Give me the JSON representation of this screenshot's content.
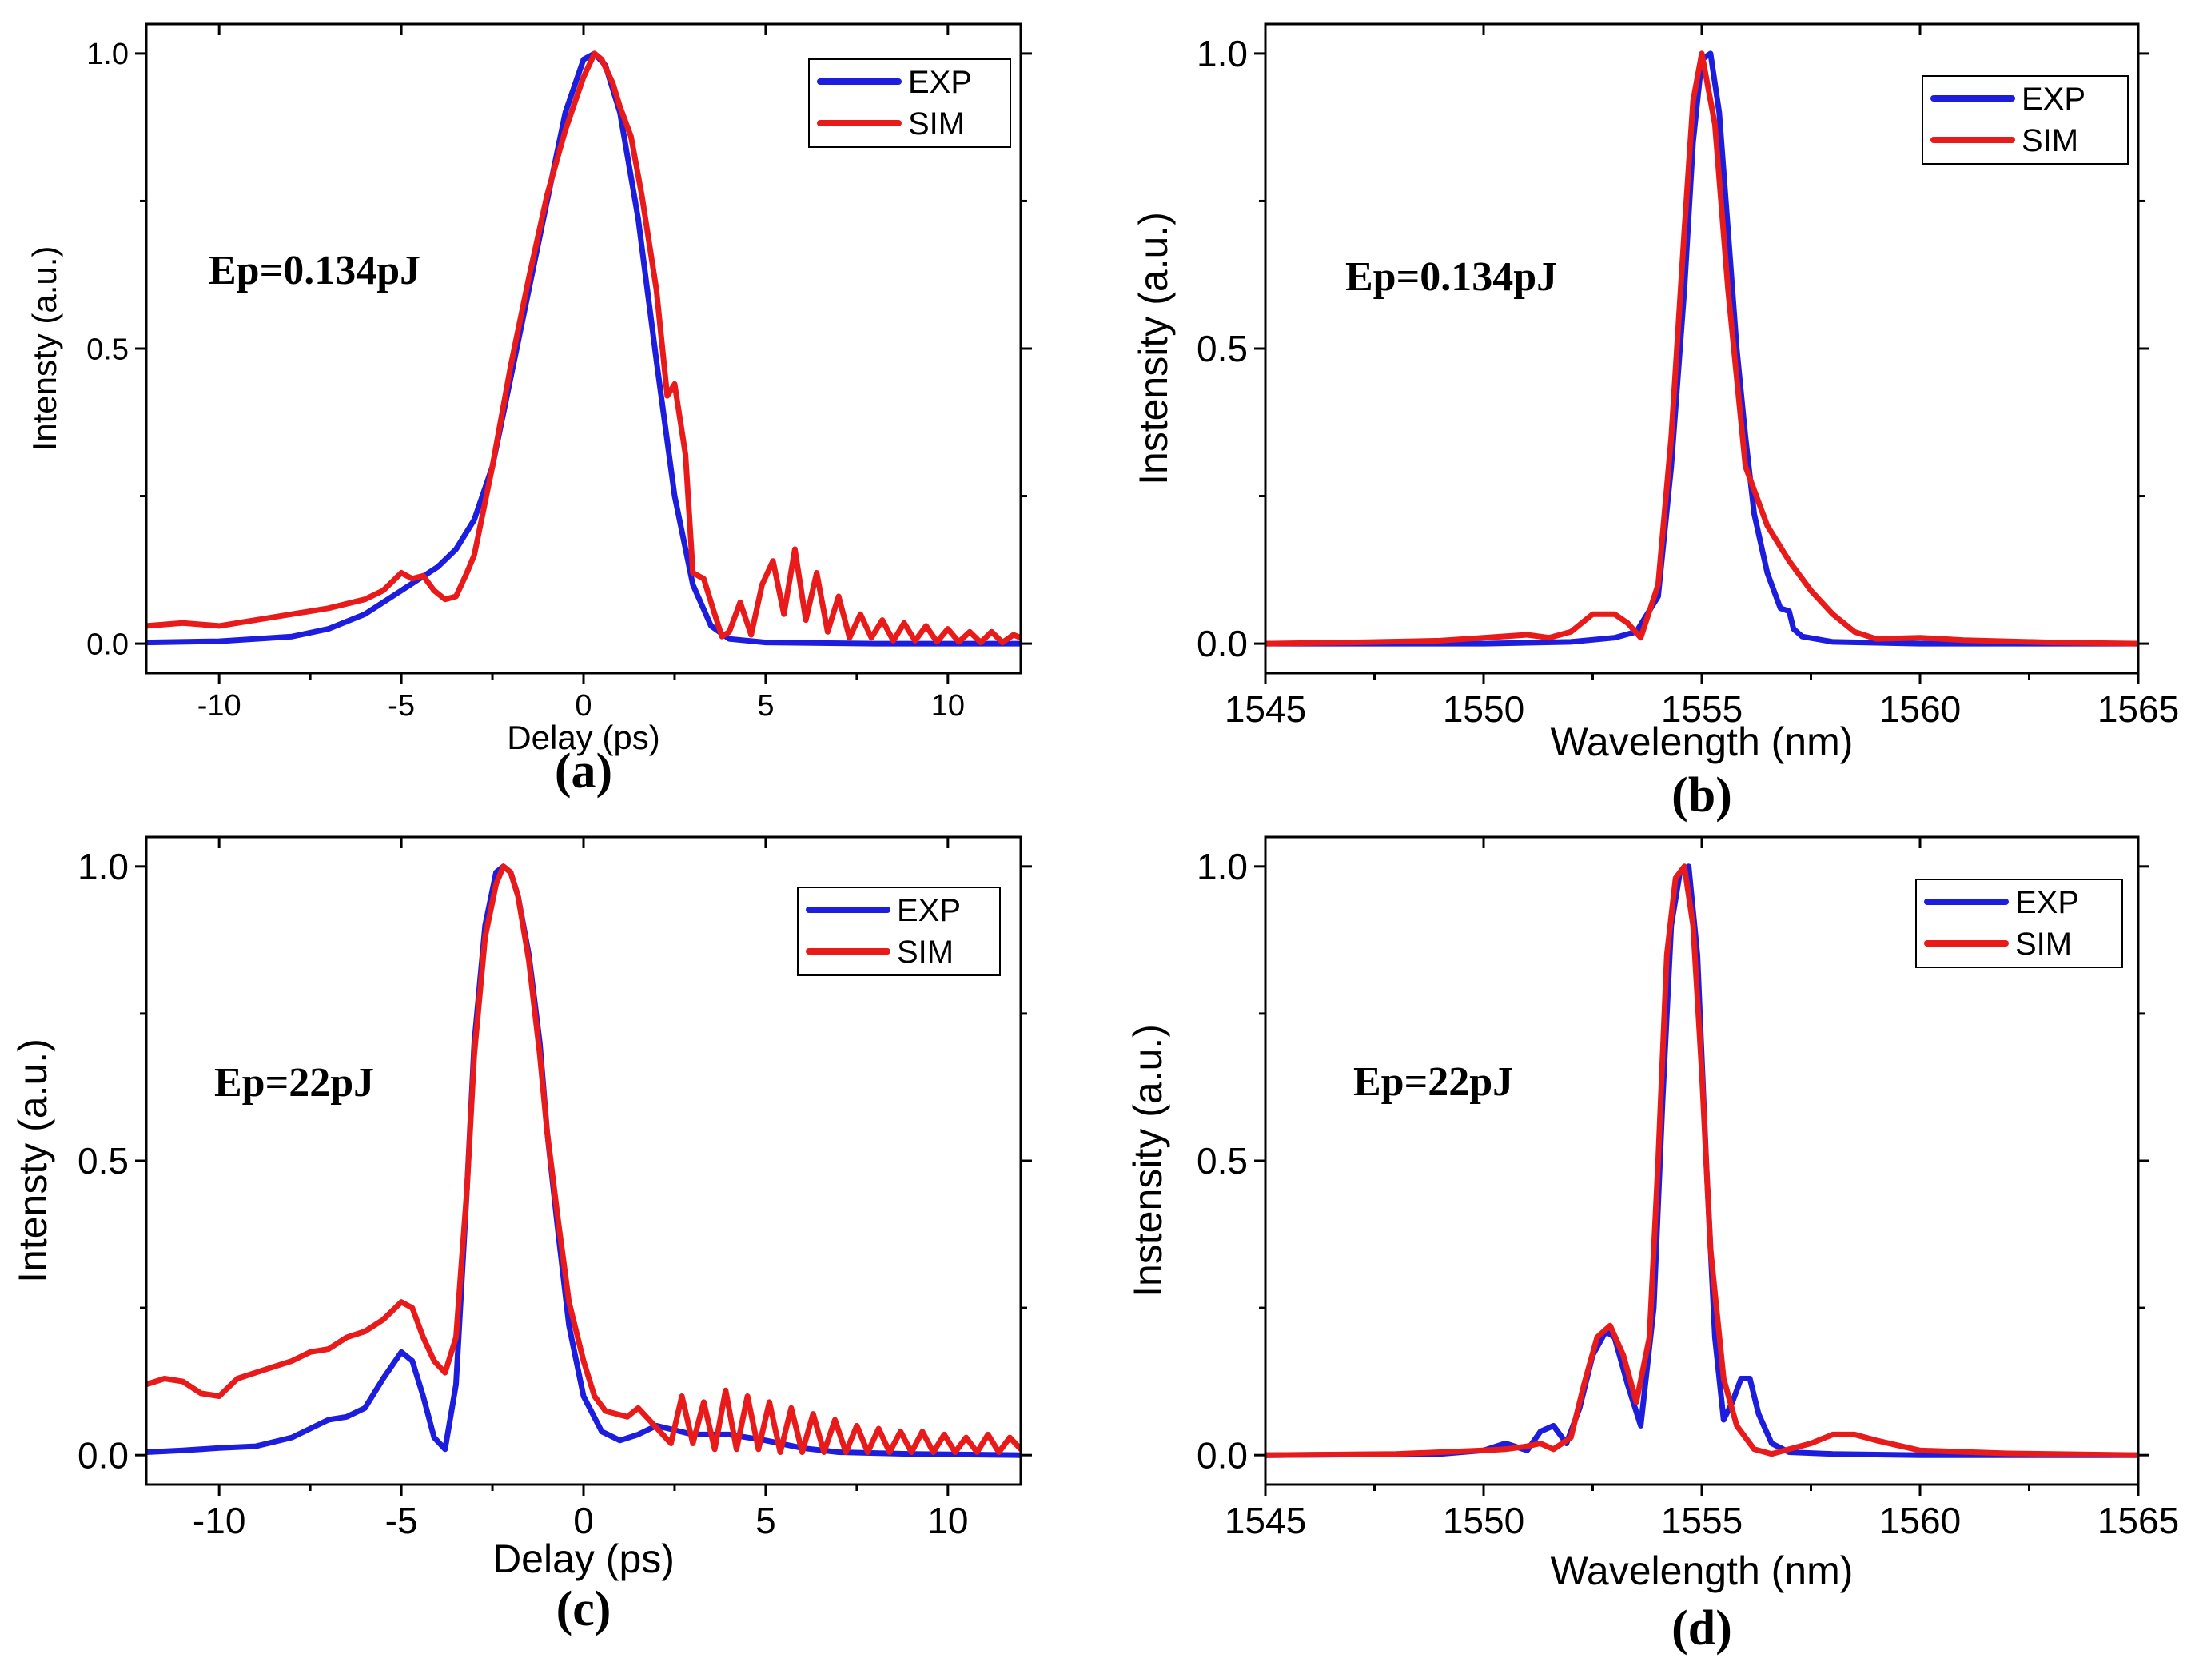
{
  "figure": {
    "background": "#ffffff"
  },
  "colors": {
    "exp": "#1d1dde",
    "sim": "#e81a1a",
    "axis": "#000000"
  },
  "chart_data": [
    {
      "id": "a",
      "type": "line",
      "panel_label": "(a)",
      "annotation": "Ep=0.134pJ",
      "xlabel": "Delay (ps)",
      "ylabel": "Intensty (a.u.)",
      "xlim": [
        -12,
        12
      ],
      "ylim": [
        -0.05,
        1.05
      ],
      "xticks": [
        -10,
        -5,
        0,
        5,
        10
      ],
      "xtick_labels": [
        "-10",
        "-5",
        "0",
        "5",
        "10"
      ],
      "yticks": [
        0,
        0.5,
        1
      ],
      "ytick_labels": [
        "0.0",
        "0.5",
        "1.0"
      ],
      "legend": {
        "position": "top-right",
        "entries": [
          "EXP",
          "SIM"
        ]
      },
      "series": [
        {
          "name": "EXP",
          "x": [
            -12,
            -10,
            -8,
            -7,
            -6,
            -5,
            -4,
            -3.5,
            -3,
            -2.5,
            -2,
            -1.5,
            -1,
            -0.5,
            0,
            0.3,
            0.6,
            1,
            1.5,
            2,
            2.5,
            3,
            3.5,
            4,
            5,
            8,
            12
          ],
          "y": [
            0.002,
            0.004,
            0.012,
            0.025,
            0.05,
            0.09,
            0.13,
            0.16,
            0.21,
            0.3,
            0.45,
            0.6,
            0.75,
            0.9,
            0.99,
            1.0,
            0.98,
            0.9,
            0.72,
            0.48,
            0.25,
            0.1,
            0.03,
            0.008,
            0.002,
            0.0,
            0.0
          ]
        },
        {
          "name": "SIM",
          "x": [
            -12,
            -11,
            -10,
            -9,
            -8,
            -7,
            -6,
            -5.5,
            -5,
            -4.7,
            -4.4,
            -4.1,
            -3.8,
            -3.5,
            -3.2,
            -3,
            -2.5,
            -2,
            -1.5,
            -1,
            -0.5,
            0,
            0.3,
            0.5,
            0.8,
            1,
            1.3,
            1.6,
            2,
            2.3,
            2.5,
            2.8,
            3,
            3.3,
            3.6,
            3.8,
            4,
            4.3,
            4.6,
            4.9,
            5.2,
            5.5,
            5.8,
            6.1,
            6.4,
            6.7,
            7,
            7.3,
            7.6,
            7.9,
            8.2,
            8.5,
            8.8,
            9.1,
            9.4,
            9.7,
            10,
            10.3,
            10.6,
            10.9,
            11.2,
            11.5,
            11.8,
            12
          ],
          "y": [
            0.03,
            0.035,
            0.03,
            0.04,
            0.05,
            0.06,
            0.075,
            0.09,
            0.12,
            0.11,
            0.115,
            0.09,
            0.075,
            0.08,
            0.12,
            0.15,
            0.3,
            0.47,
            0.62,
            0.76,
            0.87,
            0.96,
            1.0,
            0.99,
            0.95,
            0.91,
            0.86,
            0.76,
            0.6,
            0.42,
            0.44,
            0.32,
            0.12,
            0.11,
            0.05,
            0.012,
            0.02,
            0.07,
            0.015,
            0.1,
            0.14,
            0.05,
            0.16,
            0.04,
            0.12,
            0.02,
            0.08,
            0.01,
            0.05,
            0.01,
            0.04,
            0.005,
            0.035,
            0.005,
            0.03,
            0.003,
            0.025,
            0.003,
            0.02,
            0.002,
            0.02,
            0.002,
            0.015,
            0.01
          ]
        }
      ]
    },
    {
      "id": "b",
      "type": "line",
      "panel_label": "(b)",
      "annotation": "Ep=0.134pJ",
      "xlabel": "Wavelength (nm)",
      "ylabel": "Instensity (a.u.)",
      "xlim": [
        1545,
        1565
      ],
      "ylim": [
        -0.05,
        1.05
      ],
      "xticks": [
        1545,
        1550,
        1555,
        1560,
        1565
      ],
      "xtick_labels": [
        "1545",
        "1550",
        "1555",
        "1560",
        "1565"
      ],
      "yticks": [
        0,
        0.5,
        1
      ],
      "ytick_labels": [
        "0.0",
        "0.5",
        "1.0"
      ],
      "legend": {
        "position": "top-right",
        "entries": [
          "EXP",
          "SIM"
        ]
      },
      "series": [
        {
          "name": "EXP",
          "x": [
            1545,
            1550,
            1552,
            1553,
            1553.5,
            1554,
            1554.3,
            1554.6,
            1554.8,
            1555,
            1555.2,
            1555.4,
            1555.6,
            1555.8,
            1556,
            1556.2,
            1556.5,
            1556.8,
            1557,
            1557.1,
            1557.3,
            1558,
            1560,
            1565
          ],
          "y": [
            0.0,
            0.0,
            0.003,
            0.01,
            0.02,
            0.08,
            0.3,
            0.6,
            0.85,
            0.99,
            1.0,
            0.9,
            0.7,
            0.5,
            0.35,
            0.22,
            0.12,
            0.06,
            0.055,
            0.025,
            0.012,
            0.003,
            0.0,
            0.0
          ]
        },
        {
          "name": "SIM",
          "x": [
            1545,
            1547,
            1549,
            1550,
            1551,
            1551.5,
            1552,
            1552.5,
            1553,
            1553.3,
            1553.6,
            1554,
            1554.3,
            1554.6,
            1554.8,
            1555,
            1555.3,
            1555.6,
            1556,
            1556.5,
            1557,
            1557.5,
            1558,
            1558.5,
            1559,
            1560,
            1561,
            1563,
            1565
          ],
          "y": [
            0.0,
            0.002,
            0.005,
            0.01,
            0.015,
            0.01,
            0.02,
            0.05,
            0.05,
            0.035,
            0.01,
            0.1,
            0.35,
            0.7,
            0.92,
            1.0,
            0.88,
            0.6,
            0.3,
            0.2,
            0.14,
            0.09,
            0.05,
            0.02,
            0.008,
            0.01,
            0.006,
            0.002,
            0.0
          ]
        }
      ]
    },
    {
      "id": "c",
      "type": "line",
      "panel_label": "(c)",
      "annotation": "Ep=22pJ",
      "xlabel": "Delay (ps)",
      "ylabel": "Intensty (a.u.)",
      "xlim": [
        -12,
        12
      ],
      "ylim": [
        -0.05,
        1.05
      ],
      "xticks": [
        -10,
        -5,
        0,
        5,
        10
      ],
      "xtick_labels": [
        "-10",
        "-5",
        "0",
        "5",
        "10"
      ],
      "yticks": [
        0,
        0.5,
        1
      ],
      "ytick_labels": [
        "0.0",
        "0.5",
        "1.0"
      ],
      "legend": {
        "position": "top-right",
        "entries": [
          "EXP",
          "SIM"
        ]
      },
      "series": [
        {
          "name": "EXP",
          "x": [
            -12,
            -11,
            -10,
            -9,
            -8,
            -7,
            -6.5,
            -6,
            -5.5,
            -5,
            -4.7,
            -4.4,
            -4.1,
            -3.8,
            -3.5,
            -3.2,
            -3,
            -2.7,
            -2.4,
            -2.2,
            -2,
            -1.8,
            -1.5,
            -1.2,
            -1,
            -0.7,
            -0.4,
            0,
            0.5,
            1,
            1.5,
            2,
            3,
            4,
            5,
            6,
            7,
            9,
            12
          ],
          "y": [
            0.005,
            0.008,
            0.012,
            0.015,
            0.03,
            0.06,
            0.065,
            0.08,
            0.13,
            0.175,
            0.16,
            0.1,
            0.03,
            0.01,
            0.12,
            0.45,
            0.7,
            0.9,
            0.99,
            1.0,
            0.99,
            0.95,
            0.85,
            0.7,
            0.55,
            0.38,
            0.22,
            0.1,
            0.04,
            0.025,
            0.035,
            0.05,
            0.035,
            0.035,
            0.025,
            0.012,
            0.005,
            0.002,
            0.0
          ]
        },
        {
          "name": "SIM",
          "x": [
            -12,
            -11.5,
            -11,
            -10.5,
            -10,
            -9.5,
            -9,
            -8.5,
            -8,
            -7.5,
            -7,
            -6.5,
            -6,
            -5.5,
            -5,
            -4.7,
            -4.4,
            -4.1,
            -3.8,
            -3.5,
            -3.2,
            -3,
            -2.7,
            -2.4,
            -2.2,
            -2,
            -1.8,
            -1.5,
            -1.2,
            -1,
            -0.7,
            -0.4,
            0,
            0.3,
            0.6,
            0.9,
            1.2,
            1.5,
            1.8,
            2.1,
            2.4,
            2.7,
            3,
            3.3,
            3.6,
            3.9,
            4.2,
            4.5,
            4.8,
            5.1,
            5.4,
            5.7,
            6,
            6.3,
            6.6,
            6.9,
            7.2,
            7.5,
            7.8,
            8.1,
            8.4,
            8.7,
            9,
            9.3,
            9.6,
            9.9,
            10.2,
            10.5,
            10.8,
            11.1,
            11.4,
            11.7,
            12
          ],
          "y": [
            0.12,
            0.13,
            0.125,
            0.105,
            0.1,
            0.13,
            0.14,
            0.15,
            0.16,
            0.175,
            0.18,
            0.2,
            0.21,
            0.23,
            0.26,
            0.25,
            0.2,
            0.16,
            0.14,
            0.2,
            0.45,
            0.68,
            0.88,
            0.97,
            1.0,
            0.99,
            0.95,
            0.84,
            0.68,
            0.55,
            0.4,
            0.26,
            0.16,
            0.1,
            0.075,
            0.07,
            0.065,
            0.08,
            0.06,
            0.04,
            0.02,
            0.1,
            0.02,
            0.09,
            0.01,
            0.11,
            0.01,
            0.1,
            0.01,
            0.09,
            0.005,
            0.08,
            0.005,
            0.07,
            0.005,
            0.06,
            0.005,
            0.05,
            0.005,
            0.045,
            0.005,
            0.04,
            0.005,
            0.04,
            0.005,
            0.035,
            0.005,
            0.03,
            0.005,
            0.035,
            0.005,
            0.03,
            0.01
          ]
        }
      ]
    },
    {
      "id": "d",
      "type": "line",
      "panel_label": "(d)",
      "annotation": "Ep=22pJ",
      "xlabel": "Wavelength (nm)",
      "ylabel": "Instensity (a.u.)",
      "xlim": [
        1545,
        1565
      ],
      "ylim": [
        -0.05,
        1.05
      ],
      "xticks": [
        1545,
        1550,
        1555,
        1560,
        1565
      ],
      "xtick_labels": [
        "1545",
        "1550",
        "1555",
        "1560",
        "1565"
      ],
      "yticks": [
        0,
        0.5,
        1
      ],
      "ytick_labels": [
        "0.0",
        "0.5",
        "1.0"
      ],
      "legend": {
        "position": "top-right",
        "entries": [
          "EXP",
          "SIM"
        ]
      },
      "series": [
        {
          "name": "EXP",
          "x": [
            1545,
            1549,
            1550,
            1550.5,
            1551,
            1551.3,
            1551.6,
            1551.9,
            1552.2,
            1552.5,
            1552.8,
            1553,
            1553.3,
            1553.6,
            1553.9,
            1554.1,
            1554.3,
            1554.5,
            1554.7,
            1554.9,
            1555.1,
            1555.3,
            1555.5,
            1555.7,
            1555.9,
            1556.1,
            1556.3,
            1556.6,
            1557,
            1558,
            1560,
            1565
          ],
          "y": [
            0.0,
            0.002,
            0.008,
            0.02,
            0.008,
            0.04,
            0.05,
            0.02,
            0.08,
            0.17,
            0.21,
            0.2,
            0.12,
            0.05,
            0.25,
            0.6,
            0.9,
            0.99,
            1.0,
            0.85,
            0.5,
            0.2,
            0.06,
            0.09,
            0.13,
            0.13,
            0.07,
            0.02,
            0.005,
            0.002,
            0.0,
            0.0
          ]
        },
        {
          "name": "SIM",
          "x": [
            1545,
            1548,
            1549,
            1550,
            1550.5,
            1551,
            1551.3,
            1551.6,
            1552,
            1552.3,
            1552.6,
            1552.9,
            1553.2,
            1553.5,
            1553.8,
            1554,
            1554.2,
            1554.4,
            1554.6,
            1554.8,
            1555,
            1555.2,
            1555.5,
            1555.8,
            1556.2,
            1556.6,
            1557,
            1557.5,
            1558,
            1558.5,
            1559,
            1560,
            1562,
            1565
          ],
          "y": [
            0.0,
            0.002,
            0.005,
            0.008,
            0.01,
            0.015,
            0.02,
            0.01,
            0.03,
            0.12,
            0.2,
            0.22,
            0.17,
            0.09,
            0.2,
            0.5,
            0.85,
            0.98,
            1.0,
            0.9,
            0.65,
            0.35,
            0.13,
            0.05,
            0.01,
            0.002,
            0.01,
            0.02,
            0.035,
            0.035,
            0.025,
            0.008,
            0.003,
            0.0
          ]
        }
      ]
    }
  ]
}
